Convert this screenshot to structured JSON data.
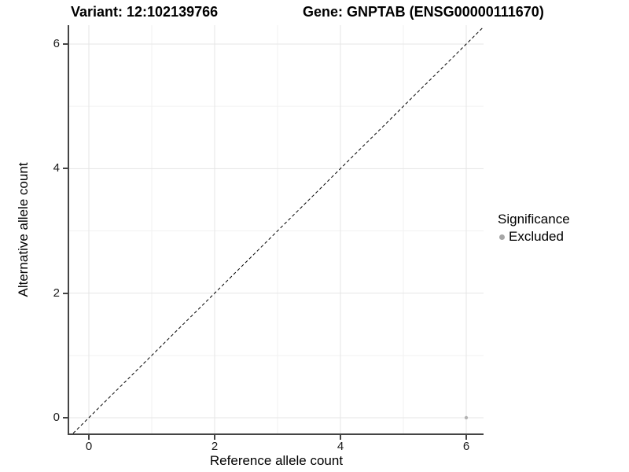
{
  "title": {
    "left": "Variant: 12:102139766",
    "right": "Gene: GNPTAB (ENSG00000111670)"
  },
  "axes": {
    "x": {
      "label": "Reference allele count",
      "ticks": [
        "0",
        "2",
        "4",
        "6"
      ]
    },
    "y": {
      "label": "Alternative allele count",
      "ticks": [
        "0",
        "2",
        "4",
        "6"
      ]
    }
  },
  "legend": {
    "title": "Significance",
    "items": [
      {
        "label": "Excluded",
        "color": "#a6a6a6",
        "marker": "dot-icon"
      }
    ]
  },
  "chart_data": {
    "type": "scatter",
    "title": "Variant: 12:102139766   Gene: GNPTAB (ENSG00000111670)",
    "xlabel": "Reference allele count",
    "ylabel": "Alternative allele count",
    "xlim": [
      -0.31,
      6.28
    ],
    "ylim": [
      -0.25,
      6.3
    ],
    "x_major_ticks": [
      0,
      2,
      4,
      6
    ],
    "x_minor_ticks": [
      1,
      3,
      5
    ],
    "y_major_ticks": [
      0,
      2,
      4,
      6
    ],
    "y_minor_ticks": [
      1,
      3,
      5
    ],
    "grid": "major and minor on, white panel background",
    "legend_position": "right",
    "series": [
      {
        "name": "Excluded",
        "color": "#b3b3b3",
        "points": [
          {
            "x": 6,
            "y": 0
          }
        ]
      }
    ],
    "reference_line": {
      "type": "identity (y = x)",
      "style": "dashed",
      "color": "#000000"
    }
  },
  "colors": {
    "axis_line": "#444444",
    "grid_major": "#e5e5e5",
    "grid_minor": "#f2f2f2",
    "point": "#b3b3b3",
    "background": "#ffffff"
  }
}
